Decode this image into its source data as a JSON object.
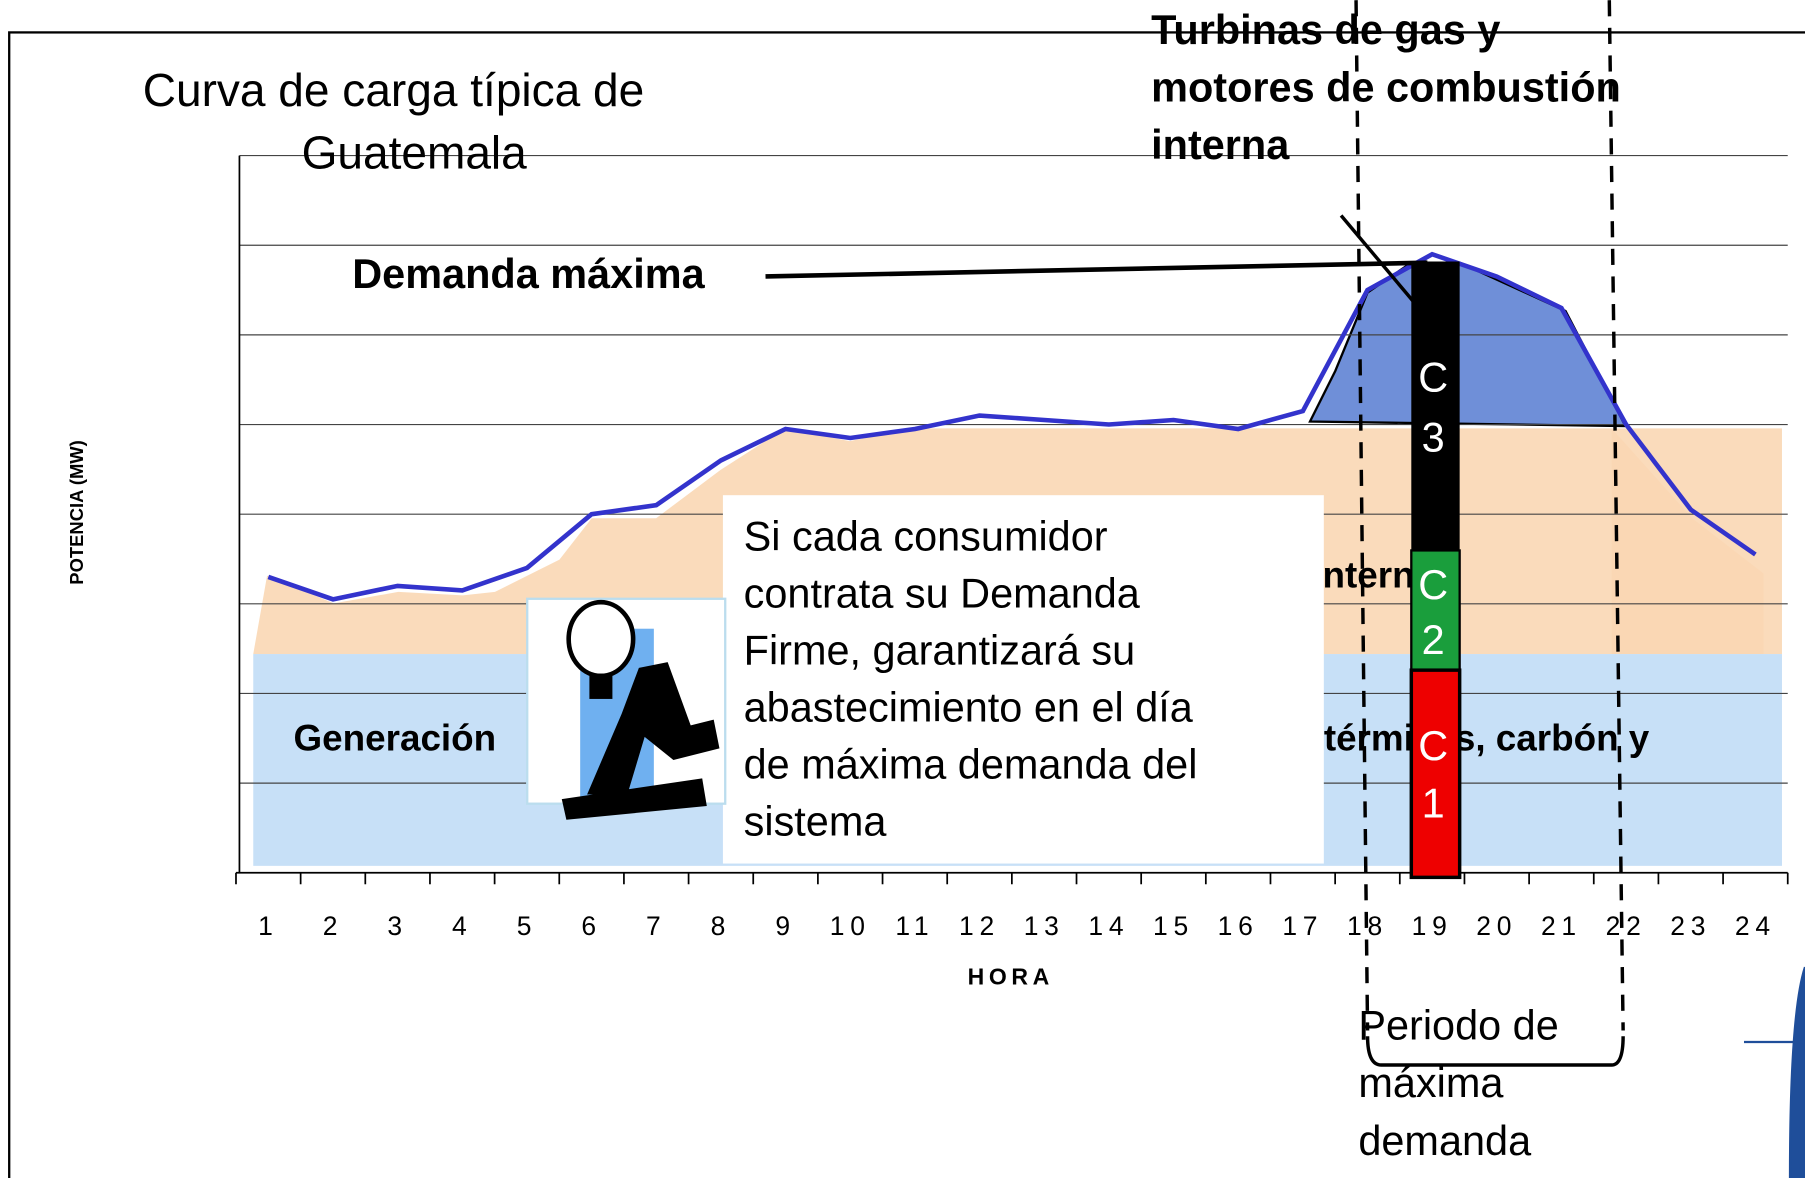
{
  "chart_data": {
    "type": "line",
    "title_lines": [
      "Curva de carga típica de",
      "Guatemala"
    ],
    "y_label": "POTENCIA (MW)",
    "x_label": "HORA",
    "categories": [
      "1",
      "2",
      "3",
      "4",
      "5",
      "6",
      "7",
      "8",
      "9",
      "10",
      "11",
      "12",
      "13",
      "14",
      "15",
      "16",
      "17",
      "18",
      "19",
      "20",
      "21",
      "22",
      "23",
      "24"
    ],
    "values": [
      3.3,
      3.05,
      3.2,
      3.15,
      3.4,
      4.0,
      4.1,
      4.6,
      4.95,
      4.85,
      4.95,
      5.1,
      5.05,
      5.0,
      5.05,
      4.95,
      5.15,
      6.5,
      6.9,
      6.65,
      6.3,
      5.0,
      4.05,
      3.55
    ],
    "color": "#3333cc",
    "ylim": [
      0,
      8
    ],
    "grid": true,
    "annotations": {
      "peak": "Demanda máxima",
      "turbines_lines": [
        "Turbinas de gas y",
        "motores de combustión",
        "interna"
      ],
      "base_generation": "Generación",
      "thermal": "térmicas, carbón y",
      "internal": "interna",
      "period_lines": [
        "Periodo de",
        "máxima",
        "demanda"
      ],
      "callout_lines": [
        "Si cada consumidor",
        "contrata su Demanda",
        "Firme, garantizará su",
        "abastecimiento en el día",
        "de máxima demanda del",
        "sistema"
      ],
      "bar_labels": [
        [
          "C",
          "3"
        ],
        [
          "C",
          "2"
        ],
        [
          "C",
          "1"
        ]
      ]
    }
  }
}
